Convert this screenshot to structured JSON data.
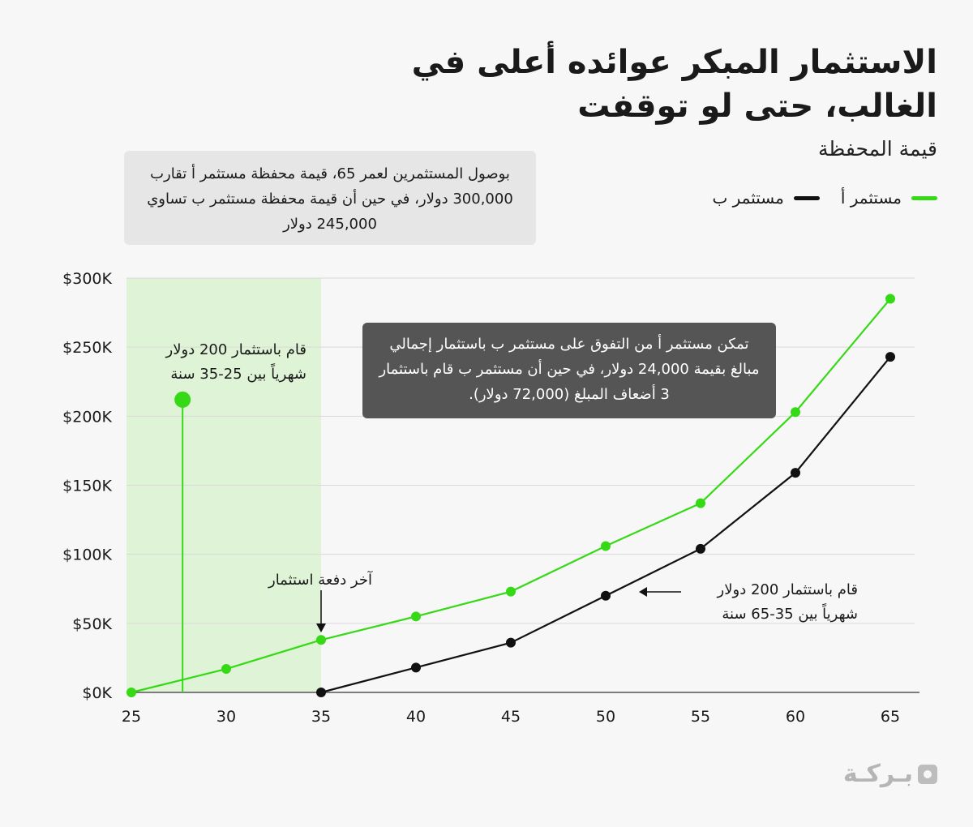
{
  "title": "الاستثمار المبكر عوائده أعلى في الغالب، حتى لو توقفت",
  "subtitle": "قيمة المحفظة",
  "top_note": "بوصول المستثمرين لعمر 65، قيمة محفظة مستثمر أ تقارب 300,000 دولار، في حين أن قيمة محفظة مستثمر ب تساوي 245,000 دولار",
  "dark_note": "تمكن مستثمر أ من التفوق على مستثمر ب باستثمار إجمالي مبالغ بقيمة 24,000 دولار، في حين أن مستثمر ب قام باستثمار 3 أضعاف المبلغ (72,000 دولار).",
  "annotations": {
    "investor_a": "قام باستثمار 200 دولار شهرياً بين 25-35 سنة",
    "last_payment": "آخر دفعة استثمار",
    "investor_b": "قام باستثمار 200 دولار شهرياً بين 35-65 سنة"
  },
  "brand": "بـركـة",
  "colors": {
    "investor_a": "#35d916",
    "investor_b": "#111111",
    "highlight": "#dff4d6",
    "grid": "#d9d9d9"
  },
  "chart_data": {
    "type": "line",
    "x": [
      25,
      30,
      35,
      40,
      45,
      50,
      55,
      60,
      65
    ],
    "xlim": [
      25,
      65
    ],
    "ylim": [
      0,
      300000
    ],
    "yticks": [
      0,
      50000,
      100000,
      150000,
      200000,
      250000,
      300000
    ],
    "ytick_labels": [
      "$0K",
      "$50K",
      "$100K",
      "$150K",
      "$200K",
      "$250K",
      "$300K"
    ],
    "xtick_labels": [
      "25",
      "30",
      "35",
      "40",
      "45",
      "50",
      "55",
      "60",
      "65"
    ],
    "highlight_range": [
      25,
      35
    ],
    "grid": true,
    "legend_position": "top-right",
    "series": [
      {
        "name": "مستثمر أ",
        "color_key": "investor_a",
        "x": [
          25,
          30,
          35,
          40,
          45,
          50,
          55,
          60,
          65
        ],
        "values": [
          0,
          17000,
          38000,
          55000,
          73000,
          106000,
          137000,
          203000,
          285000
        ]
      },
      {
        "name": "مستثمر ب",
        "color_key": "investor_b",
        "x": [
          35,
          40,
          45,
          50,
          55,
          60,
          65
        ],
        "values": [
          0,
          18000,
          36000,
          70000,
          104000,
          159000,
          243000
        ]
      }
    ],
    "callout_marker": {
      "x": 27.7,
      "y": 212000
    }
  }
}
